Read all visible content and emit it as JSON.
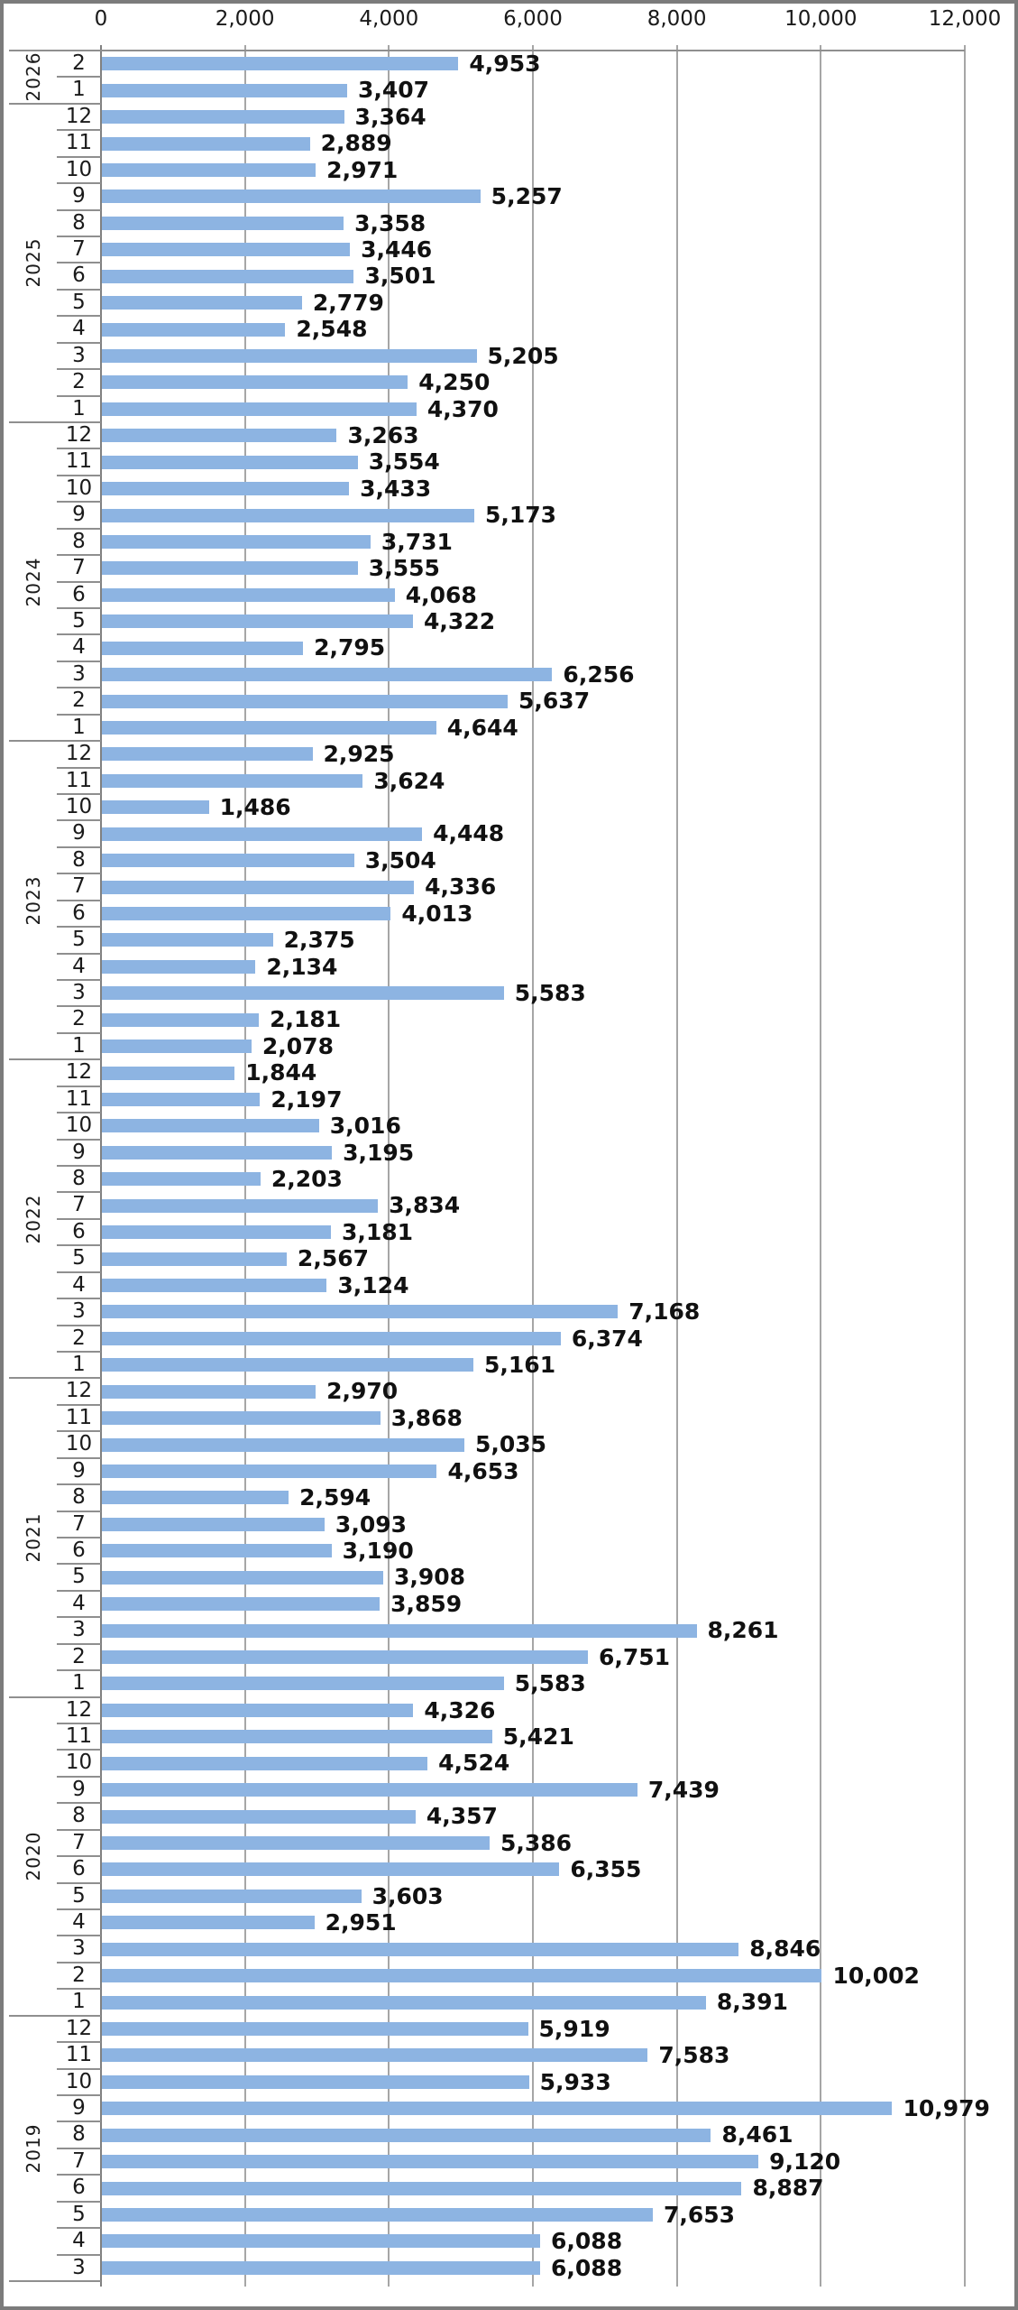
{
  "chart_data": {
    "type": "bar",
    "orientation": "horizontal",
    "title": "",
    "xlabel": "",
    "ylabel": "",
    "x_axis": {
      "position": "top",
      "min": 0,
      "max": 12000,
      "tick_values": [
        0,
        2000,
        4000,
        6000,
        8000,
        10000,
        12000
      ],
      "tick_labels": [
        "0",
        "2,000",
        "4,000",
        "6,000",
        "8,000",
        "10,000",
        "12,000"
      ],
      "gridlines": true
    },
    "y_axis": {
      "levels": [
        "month",
        "year"
      ],
      "order_note": "newest at top; months descend within each year"
    },
    "value_labels": {
      "visible": true,
      "format": "#,##0",
      "bold": true
    },
    "groups": [
      {
        "year": "2026",
        "points": [
          {
            "month": "2",
            "value": 4953
          },
          {
            "month": "1",
            "value": 3407
          }
        ]
      },
      {
        "year": "2025",
        "points": [
          {
            "month": "12",
            "value": 3364
          },
          {
            "month": "11",
            "value": 2889
          },
          {
            "month": "10",
            "value": 2971
          },
          {
            "month": "9",
            "value": 5257
          },
          {
            "month": "8",
            "value": 3358
          },
          {
            "month": "7",
            "value": 3446
          },
          {
            "month": "6",
            "value": 3501
          },
          {
            "month": "5",
            "value": 2779
          },
          {
            "month": "4",
            "value": 2548
          },
          {
            "month": "3",
            "value": 5205
          },
          {
            "month": "2",
            "value": 4250
          },
          {
            "month": "1",
            "value": 4370
          }
        ]
      },
      {
        "year": "2024",
        "points": [
          {
            "month": "12",
            "value": 3263
          },
          {
            "month": "11",
            "value": 3554
          },
          {
            "month": "10",
            "value": 3433
          },
          {
            "month": "9",
            "value": 5173
          },
          {
            "month": "8",
            "value": 3731
          },
          {
            "month": "7",
            "value": 3555
          },
          {
            "month": "6",
            "value": 4068
          },
          {
            "month": "5",
            "value": 4322
          },
          {
            "month": "4",
            "value": 2795
          },
          {
            "month": "3",
            "value": 6256
          },
          {
            "month": "2",
            "value": 5637
          },
          {
            "month": "1",
            "value": 4644
          }
        ]
      },
      {
        "year": "2023",
        "points": [
          {
            "month": "12",
            "value": 2925
          },
          {
            "month": "11",
            "value": 3624
          },
          {
            "month": "10",
            "value": 1486
          },
          {
            "month": "9",
            "value": 4448
          },
          {
            "month": "8",
            "value": 3504
          },
          {
            "month": "7",
            "value": 4336
          },
          {
            "month": "6",
            "value": 4013
          },
          {
            "month": "5",
            "value": 2375
          },
          {
            "month": "4",
            "value": 2134
          },
          {
            "month": "3",
            "value": 5583
          },
          {
            "month": "2",
            "value": 2181
          },
          {
            "month": "1",
            "value": 2078
          }
        ]
      },
      {
        "year": "2022",
        "points": [
          {
            "month": "12",
            "value": 1844
          },
          {
            "month": "11",
            "value": 2197
          },
          {
            "month": "10",
            "value": 3016
          },
          {
            "month": "9",
            "value": 3195
          },
          {
            "month": "8",
            "value": 2203
          },
          {
            "month": "7",
            "value": 3834
          },
          {
            "month": "6",
            "value": 3181
          },
          {
            "month": "5",
            "value": 2567
          },
          {
            "month": "4",
            "value": 3124
          },
          {
            "month": "3",
            "value": 7168
          },
          {
            "month": "2",
            "value": 6374
          },
          {
            "month": "1",
            "value": 5161
          }
        ]
      },
      {
        "year": "2021",
        "points": [
          {
            "month": "12",
            "value": 2970
          },
          {
            "month": "11",
            "value": 3868
          },
          {
            "month": "10",
            "value": 5035
          },
          {
            "month": "9",
            "value": 4653
          },
          {
            "month": "8",
            "value": 2594
          },
          {
            "month": "7",
            "value": 3093
          },
          {
            "month": "6",
            "value": 3190
          },
          {
            "month": "5",
            "value": 3908
          },
          {
            "month": "4",
            "value": 3859
          },
          {
            "month": "3",
            "value": 8261
          },
          {
            "month": "2",
            "value": 6751
          },
          {
            "month": "1",
            "value": 5583
          }
        ]
      },
      {
        "year": "2020",
        "points": [
          {
            "month": "12",
            "value": 4326
          },
          {
            "month": "11",
            "value": 5421
          },
          {
            "month": "10",
            "value": 4524
          },
          {
            "month": "9",
            "value": 7439
          },
          {
            "month": "8",
            "value": 4357
          },
          {
            "month": "7",
            "value": 5386
          },
          {
            "month": "6",
            "value": 6355
          },
          {
            "month": "5",
            "value": 3603
          },
          {
            "month": "4",
            "value": 2951
          },
          {
            "month": "3",
            "value": 8846
          },
          {
            "month": "2",
            "value": 10002
          },
          {
            "month": "1",
            "value": 8391
          }
        ]
      },
      {
        "year": "2019",
        "points": [
          {
            "month": "12",
            "value": 5919
          },
          {
            "month": "11",
            "value": 7583
          },
          {
            "month": "10",
            "value": 5933
          },
          {
            "month": "9",
            "value": 10979
          },
          {
            "month": "8",
            "value": 8461
          },
          {
            "month": "7",
            "value": 9120
          },
          {
            "month": "6",
            "value": 8887
          },
          {
            "month": "5",
            "value": 7653
          },
          {
            "month": "4",
            "value": 6088
          },
          {
            "month": "3",
            "value": 6088
          }
        ]
      }
    ]
  },
  "colors": {
    "bar": "#8DB4E2",
    "gridline": "#A6A6A6",
    "axis_line": "#808080",
    "separator": "#8F8F8F",
    "text": "#1A1A1A",
    "outer_border": "#7B7B7B",
    "background": "#FFFFFF"
  }
}
